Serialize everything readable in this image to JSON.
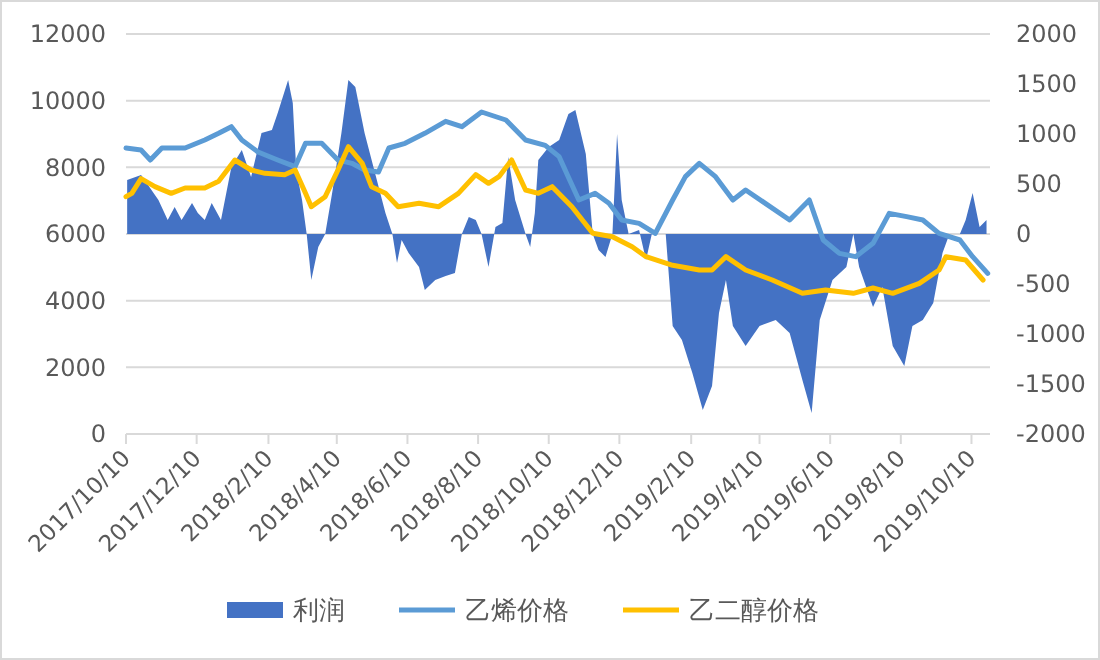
{
  "chart_data": {
    "type": "line",
    "grid": "y",
    "legend": "bottom",
    "xlim": [
      "2017-10-10",
      "2019-10-26"
    ],
    "xticks": [
      {
        "value": "2017-10-10",
        "label": "2017/10/10"
      },
      {
        "value": "2017-12-10",
        "label": "2017/12/10"
      },
      {
        "value": "2018-02-10",
        "label": "2018/2/10"
      },
      {
        "value": "2018-04-10",
        "label": "2018/4/10"
      },
      {
        "value": "2018-06-10",
        "label": "2018/6/10"
      },
      {
        "value": "2018-08-10",
        "label": "2018/8/10"
      },
      {
        "value": "2018-10-10",
        "label": "2018/10/10"
      },
      {
        "value": "2018-12-10",
        "label": "2018/12/10"
      },
      {
        "value": "2019-02-10",
        "label": "2019/2/10"
      },
      {
        "value": "2019-04-10",
        "label": "2019/4/10"
      },
      {
        "value": "2019-06-10",
        "label": "2019/6/10"
      },
      {
        "value": "2019-08-10",
        "label": "2019/8/10"
      },
      {
        "value": "2019-10-10",
        "label": "2019/10/10"
      }
    ],
    "ylim": [
      0,
      12000
    ],
    "yticks": [
      0,
      2000,
      4000,
      6000,
      8000,
      10000,
      12000
    ],
    "y2lim": [
      -2000,
      2000
    ],
    "y2ticks": [
      -2000,
      -1500,
      -1000,
      -500,
      0,
      500,
      1000,
      1500,
      2000
    ],
    "series": [
      {
        "name": "利润",
        "type": "area",
        "axis": "y2",
        "color": "#4472c4",
        "x": [
          "2017-10-11",
          "2017-10-23",
          "2017-11-07",
          "2017-11-15",
          "2017-11-21",
          "2017-11-27",
          "2017-12-06",
          "2017-12-11",
          "2017-12-17",
          "2017-12-23",
          "2017-12-31",
          "2018-01-09",
          "2018-01-18",
          "2018-01-26",
          "2018-02-04",
          "2018-02-13",
          "2018-02-18",
          "2018-02-27",
          "2018-03-03",
          "2018-03-06",
          "2018-03-11",
          "2018-03-15",
          "2018-03-19",
          "2018-03-25",
          "2018-03-31",
          "2018-04-06",
          "2018-04-14",
          "2018-04-20",
          "2018-04-26",
          "2018-05-04",
          "2018-05-13",
          "2018-05-22",
          "2018-05-28",
          "2018-06-01",
          "2018-06-05",
          "2018-06-11",
          "2018-06-20",
          "2018-06-25",
          "2018-07-04",
          "2018-07-13",
          "2018-07-21",
          "2018-07-27",
          "2018-08-02",
          "2018-08-08",
          "2018-08-13",
          "2018-08-19",
          "2018-08-25",
          "2018-08-31",
          "2018-09-05",
          "2018-09-11",
          "2018-09-20",
          "2018-09-24",
          "2018-09-28",
          "2018-10-01",
          "2018-10-10",
          "2018-10-19",
          "2018-10-27",
          "2018-11-02",
          "2018-11-11",
          "2018-11-17",
          "2018-11-22",
          "2018-11-28",
          "2018-12-04",
          "2018-12-08",
          "2018-12-12",
          "2018-12-18",
          "2018-12-27",
          "2019-01-02",
          "2019-01-07",
          "2019-01-19",
          "2019-01-25",
          "2019-02-02",
          "2019-02-11",
          "2019-02-20",
          "2019-02-28",
          "2019-03-06",
          "2019-03-12",
          "2019-03-18",
          "2019-03-29",
          "2019-04-10",
          "2019-04-24",
          "2019-05-06",
          "2019-05-17",
          "2019-05-25",
          "2019-06-01",
          "2019-06-12",
          "2019-06-24",
          "2019-06-30",
          "2019-07-05",
          "2019-07-17",
          "2019-07-25",
          "2019-08-03",
          "2019-08-13",
          "2019-08-20",
          "2019-08-29",
          "2019-09-07",
          "2019-09-15",
          "2019-09-21",
          "2019-09-30",
          "2019-10-05",
          "2019-10-11",
          "2019-10-17",
          "2019-10-23"
        ],
        "values": [
          540,
          590,
          340,
          140,
          270,
          140,
          310,
          210,
          140,
          310,
          140,
          670,
          840,
          570,
          1010,
          1040,
          1210,
          1540,
          1310,
          640,
          340,
          0,
          -460,
          -130,
          0,
          410,
          1010,
          1540,
          1470,
          1010,
          610,
          210,
          0,
          -290,
          -60,
          -190,
          -330,
          -560,
          -460,
          -420,
          -390,
          0,
          170,
          140,
          0,
          -330,
          70,
          110,
          770,
          340,
          0,
          -130,
          210,
          740,
          870,
          940,
          1200,
          1240,
          800,
          0,
          -160,
          -230,
          0,
          1000,
          340,
          0,
          40,
          -260,
          0,
          0,
          -920,
          -1060,
          -1390,
          -1760,
          -1520,
          -790,
          -460,
          -920,
          -1120,
          -920,
          -860,
          -990,
          -1460,
          -1790,
          -860,
          -460,
          -330,
          0,
          -330,
          -730,
          -530,
          -1120,
          -1320,
          -920,
          -860,
          -690,
          -190,
          0,
          0,
          140,
          410,
          70,
          140
        ]
      },
      {
        "name": "乙烯价格",
        "color": "#5b9bd5",
        "x": [
          "2017-10-10",
          "2017-10-23",
          "2017-10-31",
          "2017-11-10",
          "2017-11-30",
          "2017-12-17",
          "2017-12-29",
          "2018-01-09",
          "2018-01-18",
          "2018-02-01",
          "2018-02-18",
          "2018-03-05",
          "2018-03-14",
          "2018-03-28",
          "2018-04-11",
          "2018-04-23",
          "2018-05-04",
          "2018-05-16",
          "2018-05-25",
          "2018-06-08",
          "2018-06-25",
          "2018-07-13",
          "2018-07-27",
          "2018-08-13",
          "2018-09-03",
          "2018-09-20",
          "2018-10-07",
          "2018-10-19",
          "2018-10-27",
          "2018-11-05",
          "2018-11-19",
          "2018-12-01",
          "2018-12-12",
          "2018-12-27",
          "2019-01-10",
          "2019-01-25",
          "2019-02-05",
          "2019-02-17",
          "2019-03-03",
          "2019-03-18",
          "2019-03-29",
          "2019-04-15",
          "2019-05-06",
          "2019-05-23",
          "2019-06-04",
          "2019-06-18",
          "2019-07-02",
          "2019-07-17",
          "2019-07-31",
          "2019-08-15",
          "2019-08-29",
          "2019-09-12",
          "2019-09-30",
          "2019-10-11",
          "2019-10-24"
        ],
        "values": [
          8580,
          8520,
          8220,
          8580,
          8580,
          8820,
          9020,
          9220,
          8820,
          8460,
          8220,
          8020,
          8720,
          8720,
          8220,
          8120,
          7920,
          7860,
          8580,
          8720,
          9020,
          9380,
          9220,
          9660,
          9420,
          8820,
          8660,
          8320,
          7700,
          7020,
          7220,
          6920,
          6420,
          6320,
          6020,
          7020,
          7720,
          8120,
          7720,
          7020,
          7320,
          6920,
          6420,
          7020,
          5820,
          5420,
          5320,
          5720,
          6620,
          6520,
          6420,
          6020,
          5820,
          5320,
          4820
        ]
      },
      {
        "name": "乙二醇价格",
        "color": "#ffc000",
        "x": [
          "2017-10-10",
          "2017-10-15",
          "2017-10-23",
          "2017-11-04",
          "2017-11-18",
          "2017-11-30",
          "2017-12-17",
          "2017-12-29",
          "2018-01-12",
          "2018-01-26",
          "2018-02-07",
          "2018-02-24",
          "2018-03-05",
          "2018-03-14",
          "2018-03-19",
          "2018-03-31",
          "2018-04-11",
          "2018-04-20",
          "2018-05-02",
          "2018-05-10",
          "2018-05-22",
          "2018-06-02",
          "2018-06-20",
          "2018-07-07",
          "2018-07-24",
          "2018-08-08",
          "2018-08-19",
          "2018-08-28",
          "2018-09-08",
          "2018-09-20",
          "2018-10-01",
          "2018-10-13",
          "2018-10-30",
          "2018-11-17",
          "2018-12-04",
          "2018-12-21",
          "2019-01-02",
          "2019-01-25",
          "2019-02-17",
          "2019-02-28",
          "2019-03-12",
          "2019-03-29",
          "2019-04-21",
          "2019-05-17",
          "2019-06-06",
          "2019-06-30",
          "2019-07-17",
          "2019-08-03",
          "2019-08-26",
          "2019-09-12",
          "2019-09-18",
          "2019-10-05",
          "2019-10-20"
        ],
        "values": [
          7120,
          7220,
          7660,
          7420,
          7220,
          7380,
          7380,
          7580,
          8220,
          7920,
          7820,
          7780,
          7920,
          7220,
          6820,
          7120,
          7920,
          8620,
          8120,
          7420,
          7220,
          6820,
          6920,
          6820,
          7220,
          7780,
          7520,
          7720,
          8220,
          7320,
          7220,
          7420,
          6820,
          6020,
          5920,
          5620,
          5320,
          5060,
          4920,
          4920,
          5320,
          4920,
          4620,
          4220,
          4320,
          4220,
          4380,
          4220,
          4520,
          4920,
          5320,
          5220,
          4620
        ]
      }
    ]
  }
}
